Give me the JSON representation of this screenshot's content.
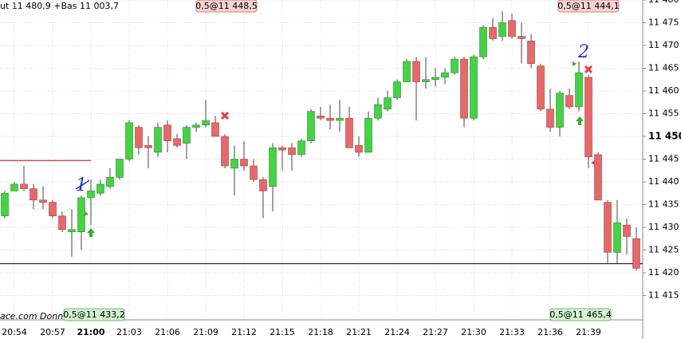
{
  "chart_data": {
    "type": "candlestick",
    "header": "ut 11 480,9 +Bas 11 003,7",
    "footer": "ace.com  Données",
    "categories": [
      null,
      "20:54",
      null,
      null,
      null,
      "20:57",
      null,
      null,
      null,
      "21:00",
      null,
      null,
      null,
      "21:03",
      null,
      null,
      null,
      "21:06",
      null,
      null,
      null,
      "21:09",
      null,
      null,
      null,
      "21:12",
      null,
      null,
      null,
      "21:15",
      null,
      null,
      null,
      "21:18",
      null,
      null,
      null,
      "21:21",
      null,
      null,
      null,
      "21:24",
      null,
      null,
      null,
      "21:27",
      null,
      null,
      null,
      "21:30",
      null,
      null,
      null,
      "21:33",
      null,
      null,
      null,
      "21:36",
      null,
      null,
      null,
      "21:39",
      null,
      null,
      null,
      null,
      null
    ],
    "open": [
      11432.5,
      11438,
      11439.5,
      11438.5,
      11436,
      11435.5,
      11432.5,
      11429,
      11429,
      11436.5,
      11437.5,
      11439,
      11441,
      11445,
      11452,
      11448,
      11446.5,
      11452.5,
      11449.5,
      11448.5,
      11452,
      11452.5,
      11453,
      11450,
      11443,
      11445,
      11443.5,
      11440.5,
      11439,
      11447.5,
      11447.5,
      11446,
      11449,
      11454.5,
      11454,
      11453.5,
      11454,
      11448,
      11446.5,
      11454,
      11456,
      11458.5,
      11462,
      11466.5,
      11462,
      11462.5,
      11463,
      11464,
      11467,
      11454,
      11467.5,
      11474,
      11472,
      11475.5,
      11472,
      11471,
      11465.5,
      11456,
      11452,
      11459,
      11456.5,
      11463,
      11446,
      11435.5,
      11424.5,
      11430.5,
      11427.5
    ],
    "high": [
      11438,
      11440,
      11443.5,
      11439.5,
      11439,
      11436,
      11433.5,
      11434,
      11437,
      11440.5,
      11440.5,
      11443,
      11445,
      11453.5,
      11452.5,
      11450,
      11453,
      11453.5,
      11450.5,
      11452.5,
      11453,
      11458,
      11454.5,
      11450.5,
      11448,
      11449,
      11445,
      11441,
      11448.5,
      11448,
      11448.5,
      11449.5,
      11456,
      11456.5,
      11457,
      11458,
      11456.5,
      11450,
      11455.5,
      11458.5,
      11460,
      11462.5,
      11467,
      11467.5,
      11467.5,
      11465,
      11465,
      11467.5,
      11467.5,
      11468,
      11474.5,
      11476,
      11477.5,
      11477,
      11475,
      11472.5,
      11466,
      11460.5,
      11460,
      11460.5,
      11466.5,
      11463.5,
      11446.5,
      11436,
      11436,
      11432,
      11430
    ],
    "low": [
      11432,
      11438,
      11438,
      11434,
      11434,
      11432,
      11429,
      11423.5,
      11425,
      11430.5,
      11437,
      11438.5,
      11440.5,
      11444.5,
      11446,
      11443,
      11445.5,
      11446.5,
      11447.5,
      11445,
      11451,
      11452,
      11450,
      11443,
      11437,
      11442.5,
      11440,
      11432,
      11433.5,
      11442.5,
      11442.5,
      11445.5,
      11448.5,
      11453.5,
      11451.5,
      11451,
      11447.5,
      11445.5,
      11446.5,
      11453.5,
      11455.5,
      11458,
      11462,
      11453.5,
      11460.5,
      11461,
      11461.5,
      11463.5,
      11452,
      11453.5,
      11467,
      11471,
      11471,
      11471.5,
      11466,
      11465,
      11455.5,
      11451,
      11450,
      11456,
      11455.5,
      11443,
      11436,
      11422,
      11422,
      11424,
      11420.5
    ],
    "close": [
      11437.5,
      11439.5,
      11438.5,
      11436,
      11435.5,
      11432.5,
      11429.5,
      11429.5,
      11436.5,
      11438,
      11439.5,
      11441,
      11445,
      11453,
      11447.5,
      11447.5,
      11452,
      11449,
      11448,
      11452,
      11452.5,
      11453.5,
      11450,
      11443.5,
      11445,
      11443.5,
      11440.5,
      11438,
      11447.5,
      11447,
      11446,
      11449,
      11455.5,
      11454,
      11453.5,
      11454,
      11447.5,
      11446.5,
      11454,
      11457,
      11458.5,
      11462,
      11466.5,
      11462,
      11462.5,
      11463,
      11464,
      11467,
      11454,
      11467.5,
      11474,
      11471.5,
      11475,
      11472,
      11471.5,
      11466,
      11456,
      11452,
      11459.5,
      11456.5,
      11464,
      11445.5,
      11436,
      11424.5,
      11431,
      11428,
      11421
    ],
    "up_color": "#46d246",
    "down_color": "#e36a6a",
    "ylim": [
      11410,
      11480
    ],
    "yticks": [
      {
        "value": 11480,
        "label": "11 480"
      },
      {
        "value": 11475,
        "label": "11 475"
      },
      {
        "value": 11470,
        "label": "11 470"
      },
      {
        "value": 11465,
        "label": "11 465"
      },
      {
        "value": 11460,
        "label": "11 460"
      },
      {
        "value": 11455,
        "label": "11 455"
      },
      {
        "value": 11450,
        "label": "11 450"
      },
      {
        "value": 11445,
        "label": "11 445"
      },
      {
        "value": 11440,
        "label": "11 440"
      },
      {
        "value": 11435,
        "label": "11 435"
      },
      {
        "value": 11430,
        "label": "11 430"
      },
      {
        "value": 11425,
        "label": "11 425"
      },
      {
        "value": 11420,
        "label": "11 420"
      },
      {
        "value": 11415,
        "label": "11 415"
      }
    ],
    "grid": true,
    "hlines": [
      {
        "value": 11444.7,
        "color": "#c00000"
      },
      {
        "value": 11422,
        "color": "#000000"
      }
    ],
    "order_labels": [
      {
        "text": "0,5@11 448,5",
        "side": "top",
        "kind": "sell"
      },
      {
        "text": "0,5@11 444,1",
        "side": "top",
        "kind": "sell"
      },
      {
        "text": "0,5@11 433,2",
        "side": "bottom",
        "kind": "buy"
      },
      {
        "text": "0,5@11 465,4",
        "side": "bottom",
        "kind": "buy"
      }
    ],
    "annotations": [
      "1",
      "2"
    ]
  }
}
